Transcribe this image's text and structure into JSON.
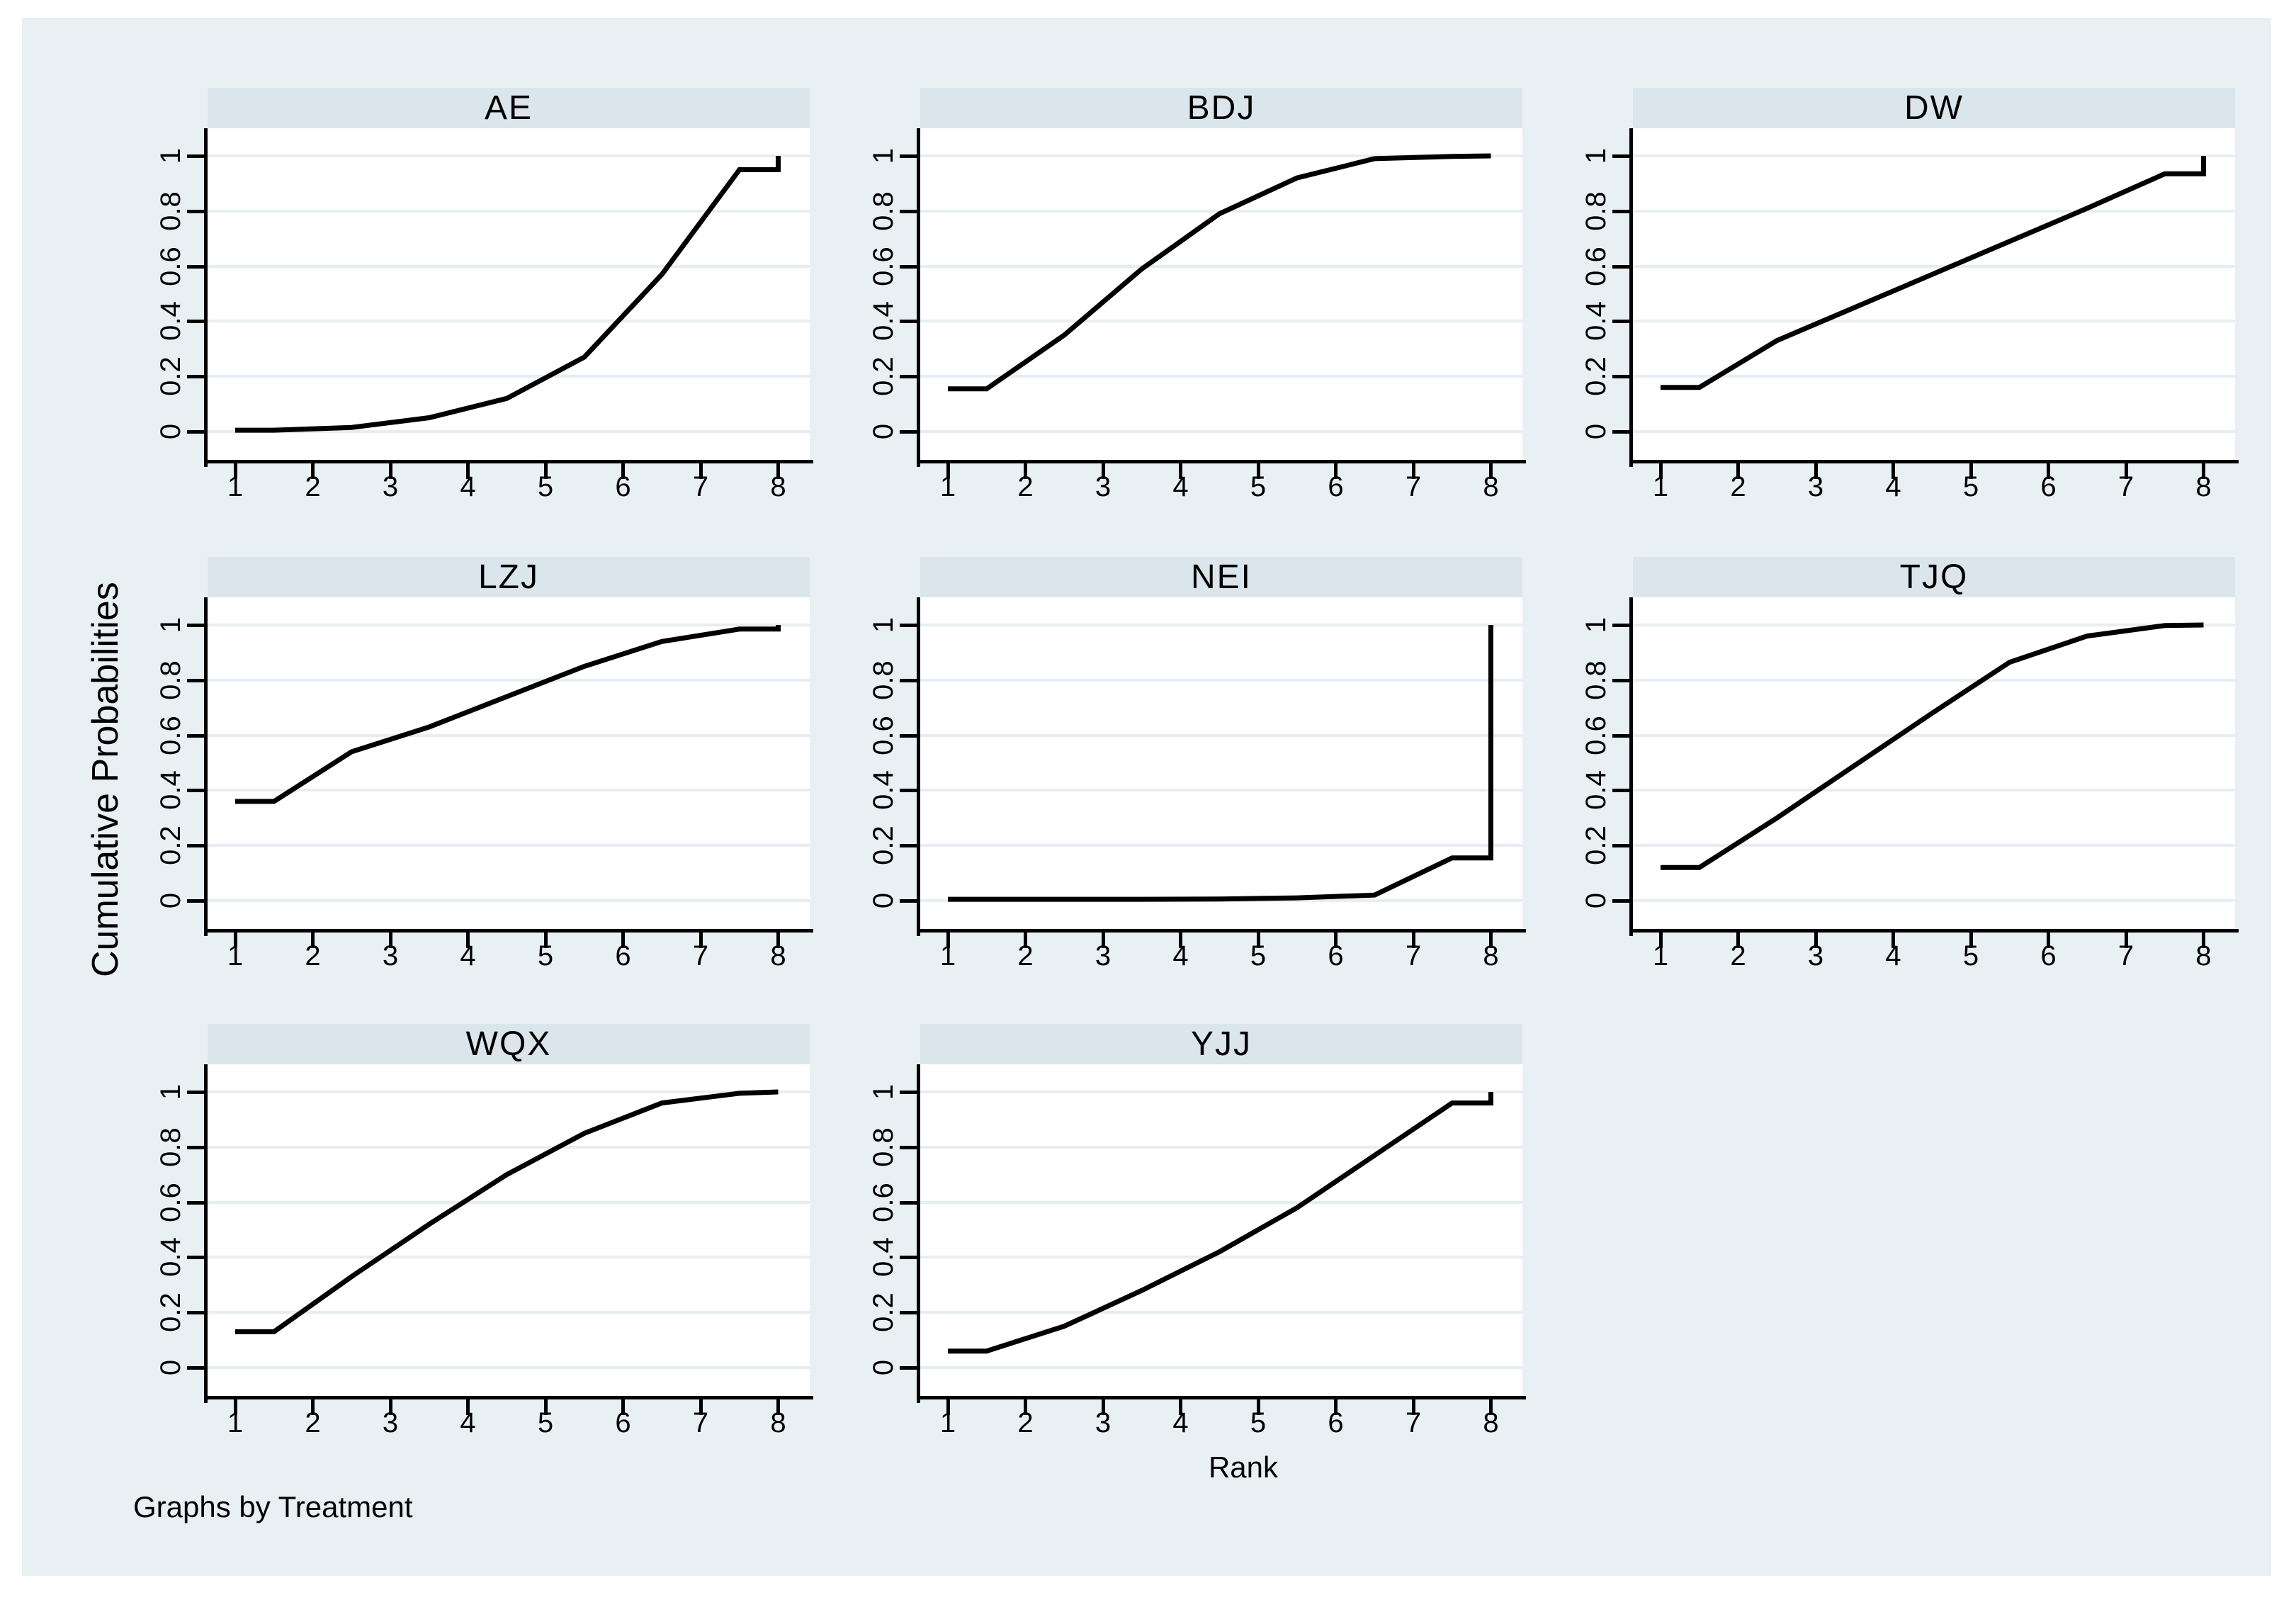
{
  "colors": {
    "canvas_background": "#e9f0f4",
    "panel_title_band": "#dbe5ec",
    "plot_background": "#ffffff",
    "gridline": "#e7eef3",
    "curve": "#000000",
    "axis": "#000000"
  },
  "chart_data": {
    "type": "line",
    "layout": "small-multiples grid, 3 columns x 3 rows (8 panels), shared axes",
    "x_label": "Rank",
    "y_label": "Cumulative Probabilities",
    "note": "Graphs by Treatment",
    "x_range": [
      1,
      8
    ],
    "y_range": [
      0,
      1
    ],
    "x_ticks": [
      "1",
      "2",
      "3",
      "4",
      "5",
      "6",
      "7",
      "8"
    ],
    "y_ticks": [
      "0",
      "0.2",
      "0.4",
      "0.6",
      "0.8",
      "1"
    ],
    "y_tick_values": [
      0,
      0.2,
      0.4,
      0.6,
      0.8,
      1
    ],
    "grid": "horizontal gridlines at each y tick",
    "panels": [
      {
        "title": "AE",
        "points": [
          [
            1,
            0.005
          ],
          [
            1.5,
            0.005
          ],
          [
            2.5,
            0.015
          ],
          [
            3.5,
            0.05
          ],
          [
            4.5,
            0.12
          ],
          [
            5.5,
            0.27
          ],
          [
            6.5,
            0.57
          ],
          [
            7.5,
            0.95
          ],
          [
            8,
            0.95
          ],
          [
            8,
            1
          ]
        ]
      },
      {
        "title": "BDJ",
        "points": [
          [
            1,
            0.155
          ],
          [
            1.5,
            0.155
          ],
          [
            2.5,
            0.35
          ],
          [
            3.5,
            0.59
          ],
          [
            4.5,
            0.79
          ],
          [
            5.5,
            0.92
          ],
          [
            6.5,
            0.99
          ],
          [
            7.5,
            0.998
          ],
          [
            8,
            1
          ]
        ]
      },
      {
        "title": "DW",
        "points": [
          [
            1,
            0.16
          ],
          [
            1.5,
            0.16
          ],
          [
            2.5,
            0.33
          ],
          [
            3.5,
            0.45
          ],
          [
            4.5,
            0.57
          ],
          [
            5.5,
            0.69
          ],
          [
            6.5,
            0.81
          ],
          [
            7.5,
            0.935
          ],
          [
            8,
            0.935
          ],
          [
            8,
            1
          ]
        ]
      },
      {
        "title": "LZJ",
        "points": [
          [
            1,
            0.36
          ],
          [
            1.5,
            0.36
          ],
          [
            2.5,
            0.54
          ],
          [
            3.5,
            0.63
          ],
          [
            4.5,
            0.74
          ],
          [
            5.5,
            0.85
          ],
          [
            6.5,
            0.94
          ],
          [
            7.5,
            0.985
          ],
          [
            8,
            0.985
          ],
          [
            8,
            1
          ]
        ]
      },
      {
        "title": "NEI",
        "points": [
          [
            1,
            0.005
          ],
          [
            1.5,
            0.005
          ],
          [
            2.5,
            0.005
          ],
          [
            3.5,
            0.005
          ],
          [
            4.5,
            0.006
          ],
          [
            5.5,
            0.01
          ],
          [
            6.5,
            0.02
          ],
          [
            7.5,
            0.155
          ],
          [
            8,
            0.155
          ],
          [
            8,
            1
          ]
        ]
      },
      {
        "title": "TJQ",
        "points": [
          [
            1,
            0.12
          ],
          [
            1.5,
            0.12
          ],
          [
            2.5,
            0.3
          ],
          [
            3.5,
            0.49
          ],
          [
            4.5,
            0.68
          ],
          [
            5.5,
            0.865
          ],
          [
            6.5,
            0.96
          ],
          [
            7.5,
            0.998
          ],
          [
            8,
            1
          ]
        ]
      },
      {
        "title": "WQX",
        "points": [
          [
            1,
            0.13
          ],
          [
            1.5,
            0.13
          ],
          [
            2.5,
            0.33
          ],
          [
            3.5,
            0.52
          ],
          [
            4.5,
            0.7
          ],
          [
            5.5,
            0.85
          ],
          [
            6.5,
            0.96
          ],
          [
            7.5,
            0.995
          ],
          [
            8,
            1
          ]
        ]
      },
      {
        "title": "YJJ",
        "points": [
          [
            1,
            0.06
          ],
          [
            1.5,
            0.06
          ],
          [
            2.5,
            0.15
          ],
          [
            3.5,
            0.28
          ],
          [
            4.5,
            0.42
          ],
          [
            5.5,
            0.58
          ],
          [
            6.5,
            0.77
          ],
          [
            7.5,
            0.96
          ],
          [
            8,
            0.96
          ],
          [
            8,
            1
          ]
        ]
      }
    ]
  }
}
